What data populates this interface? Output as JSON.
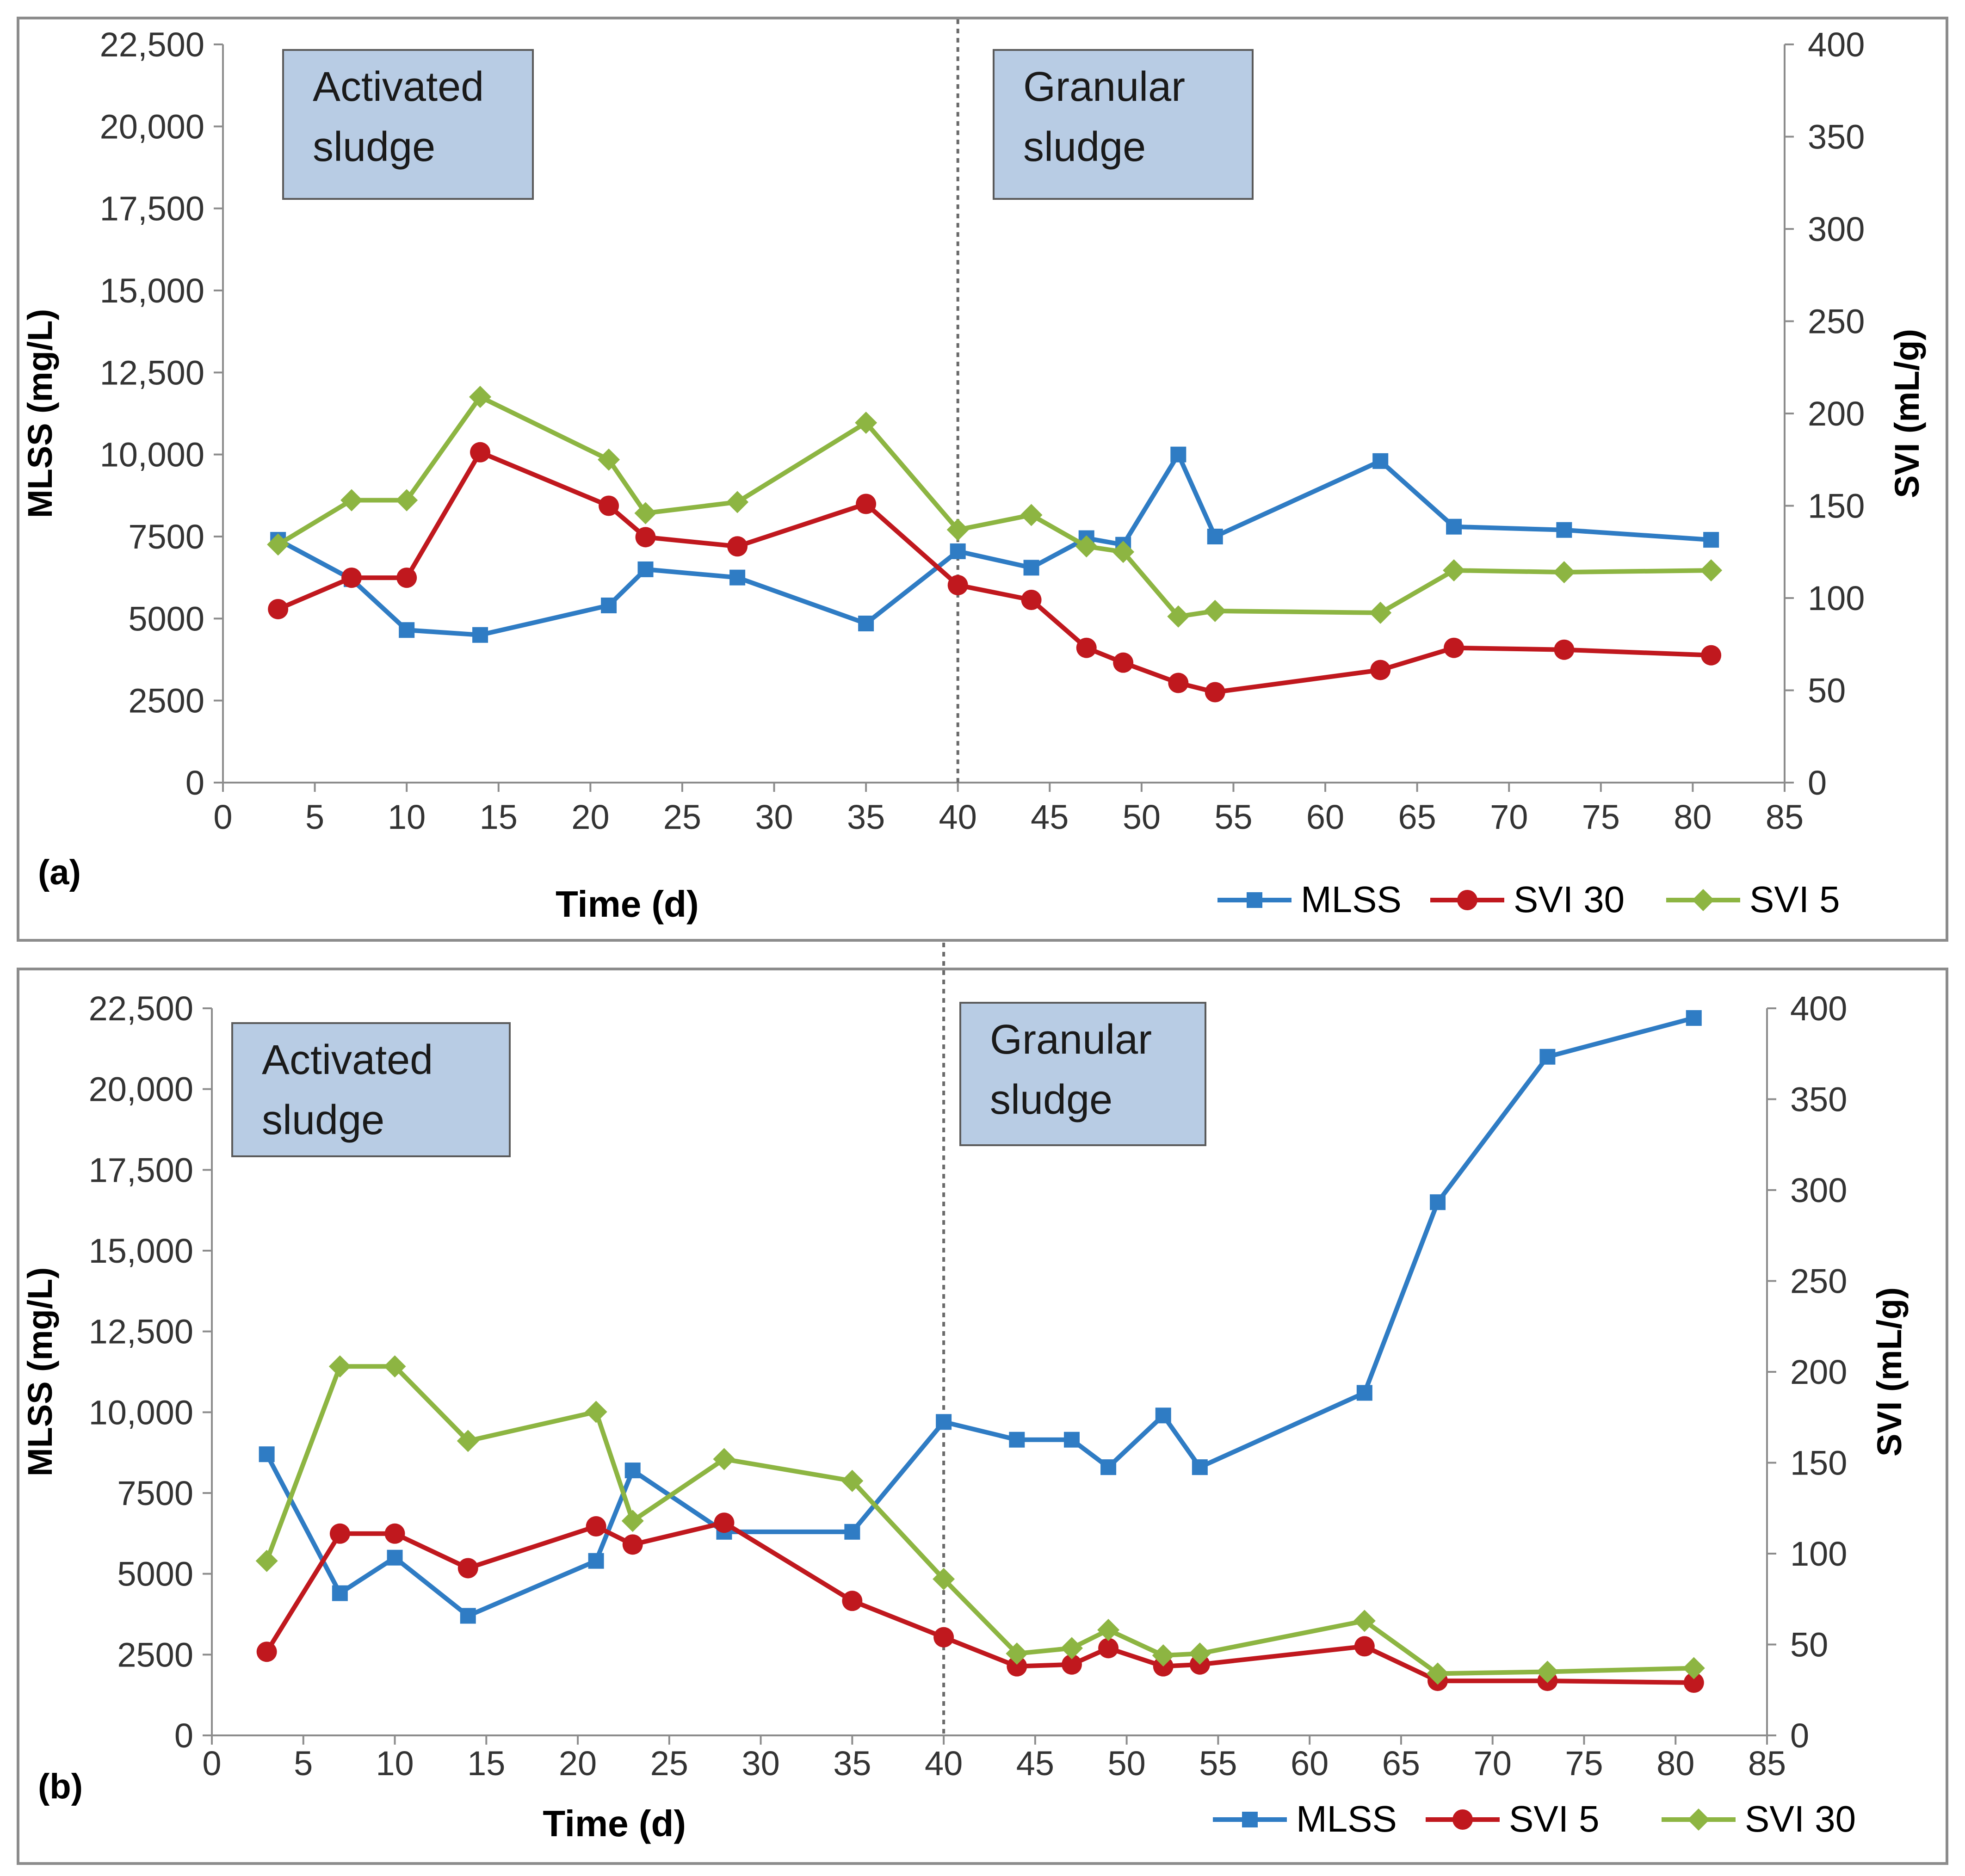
{
  "colors": {
    "mlss": "#2f7cc4",
    "svi_red": "#c0181e",
    "svi_green": "#8db542",
    "divider": "#6a6a6a"
  },
  "chart_data": [
    {
      "type": "line",
      "panel_label": "(a)",
      "xlabel": "Time (d)",
      "ylabel_left": "MLSS (mg/L)",
      "ylabel_right": "SVI (mL/g)",
      "xlim": [
        0,
        85
      ],
      "x_ticks": [
        "0",
        "5",
        "10",
        "15",
        "20",
        "25",
        "30",
        "35",
        "40",
        "45",
        "50",
        "55",
        "60",
        "65",
        "70",
        "75",
        "80",
        "85"
      ],
      "ylim_left": [
        0,
        22500
      ],
      "y_ticks_left": [
        "0",
        "2500",
        "5000",
        "7500",
        "10,000",
        "12,500",
        "15,000",
        "17,500",
        "20,000",
        "22,500"
      ],
      "ylim_right": [
        0,
        400
      ],
      "y_ticks_right": [
        "0",
        "50",
        "100",
        "150",
        "200",
        "250",
        "300",
        "350",
        "400"
      ],
      "divider_x": 40,
      "regions": [
        {
          "lines": [
            "Activated",
            "sludge"
          ]
        },
        {
          "lines": [
            "Granular",
            "sludge"
          ]
        }
      ],
      "series": [
        {
          "name": "MLSS",
          "axis": "left",
          "marker": "square",
          "color": "#2f7cc4",
          "x": [
            3,
            7,
            10,
            14,
            21,
            23,
            28,
            35,
            40,
            44,
            47,
            49,
            52,
            54,
            63,
            67,
            73,
            81
          ],
          "y": [
            7400,
            6200,
            4650,
            4500,
            5400,
            6500,
            6250,
            4850,
            7050,
            6550,
            7450,
            7250,
            10000,
            7500,
            9800,
            7800,
            7700,
            7400
          ]
        },
        {
          "name": "SVI 30",
          "axis": "right",
          "marker": "circle",
          "color": "#c0181e",
          "x": [
            3,
            7,
            10,
            14,
            21,
            23,
            28,
            35,
            40,
            44,
            47,
            49,
            52,
            54,
            63,
            67,
            73,
            81
          ],
          "y": [
            94,
            111,
            111,
            179,
            150,
            133,
            128,
            151,
            107,
            99,
            73,
            65,
            54,
            49,
            61,
            73,
            72,
            69
          ]
        },
        {
          "name": "SVI 5",
          "axis": "right",
          "marker": "diamond",
          "color": "#8db542",
          "x": [
            3,
            7,
            10,
            14,
            21,
            23,
            28,
            35,
            40,
            44,
            47,
            49,
            52,
            54,
            63,
            67,
            73,
            81
          ],
          "y": [
            129,
            153,
            153,
            209,
            175,
            146,
            152,
            195,
            137,
            145,
            128,
            125,
            90,
            93,
            92,
            115,
            114,
            115
          ]
        }
      ]
    },
    {
      "type": "line",
      "panel_label": "(b)",
      "xlabel": "Time (d)",
      "ylabel_left": "MLSS (mg/L)",
      "ylabel_right": "SVI (mL/g)",
      "xlim": [
        0,
        85
      ],
      "x_ticks": [
        "0",
        "5",
        "10",
        "15",
        "20",
        "25",
        "30",
        "35",
        "40",
        "45",
        "50",
        "55",
        "60",
        "65",
        "70",
        "75",
        "80",
        "85"
      ],
      "ylim_left": [
        0,
        22500
      ],
      "y_ticks_left": [
        "0",
        "2500",
        "5000",
        "7500",
        "10,000",
        "12,500",
        "15,000",
        "17,500",
        "20,000",
        "22,500"
      ],
      "ylim_right": [
        0,
        400
      ],
      "y_ticks_right": [
        "0",
        "50",
        "100",
        "150",
        "200",
        "250",
        "300",
        "350",
        "400"
      ],
      "divider_x": 40,
      "regions": [
        {
          "lines": [
            "Activated",
            "sludge"
          ]
        },
        {
          "lines": [
            "Granular",
            "sludge"
          ]
        }
      ],
      "series": [
        {
          "name": "MLSS",
          "axis": "left",
          "marker": "square",
          "color": "#2f7cc4",
          "x": [
            3,
            7,
            10,
            14,
            21,
            23,
            28,
            35,
            40,
            44,
            47,
            49,
            52,
            54,
            63,
            67,
            73,
            81
          ],
          "y": [
            8700,
            4400,
            5500,
            3700,
            5400,
            8200,
            6300,
            6300,
            9700,
            9150,
            9150,
            8300,
            9900,
            8300,
            10600,
            16500,
            21000,
            22200
          ]
        },
        {
          "name": "SVI 5",
          "axis": "right",
          "marker": "circle",
          "color": "#c0181e",
          "x": [
            3,
            7,
            10,
            14,
            21,
            23,
            28,
            35,
            40,
            44,
            47,
            49,
            52,
            54,
            63,
            67,
            73,
            81
          ],
          "y": [
            46,
            111,
            111,
            92,
            115,
            105,
            117,
            74,
            54,
            38,
            39,
            48,
            38,
            39,
            49,
            30,
            30,
            29
          ]
        },
        {
          "name": "SVI 30",
          "axis": "right",
          "marker": "diamond",
          "color": "#8db542",
          "x": [
            3,
            7,
            10,
            14,
            21,
            23,
            28,
            35,
            40,
            44,
            47,
            49,
            52,
            54,
            63,
            67,
            73,
            81
          ],
          "y": [
            96,
            203,
            203,
            162,
            178,
            118,
            152,
            140,
            86,
            45,
            48,
            58,
            44,
            45,
            63,
            34,
            35,
            37
          ]
        }
      ]
    }
  ]
}
